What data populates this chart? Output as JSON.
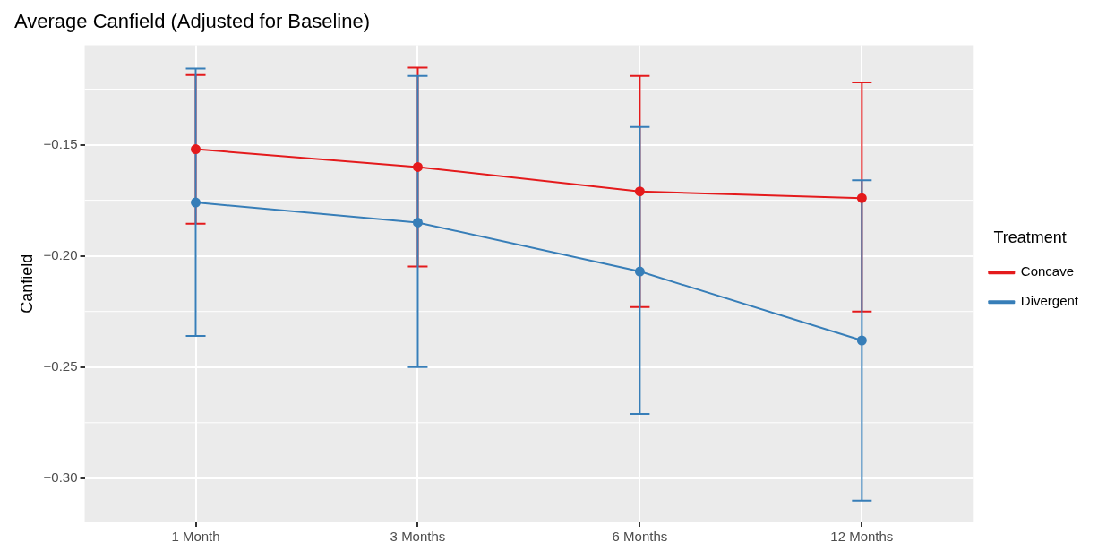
{
  "chart_data": {
    "type": "line",
    "title": "Average Canfield (Adjusted for Baseline)",
    "ylabel": "Canfield",
    "legend_title": "Treatment",
    "categories": [
      "1 Month",
      "3 Months",
      "6 Months",
      "12 Months"
    ],
    "series": [
      {
        "name": "Concave",
        "color": "#e41a1c",
        "values": [
          -0.152,
          -0.16,
          -0.171,
          -0.174
        ],
        "errors": [
          [
            -0.1855,
            -0.1186
          ],
          [
            -0.2048,
            -0.1153
          ],
          [
            -0.223,
            -0.119
          ],
          [
            -0.225,
            -0.122
          ]
        ]
      },
      {
        "name": "Divergent",
        "color": "#377eb8",
        "values": [
          -0.176,
          -0.185,
          -0.207,
          -0.238
        ],
        "errors": [
          [
            -0.236,
            -0.1157
          ],
          [
            -0.25,
            -0.119
          ],
          [
            -0.271,
            -0.142
          ],
          [
            -0.31,
            -0.166
          ]
        ]
      }
    ],
    "ylim": [
      -0.3198,
      -0.1052
    ],
    "yticks": [
      {
        "value": -0.3,
        "label": "−0.30"
      },
      {
        "value": -0.25,
        "label": "−0.25"
      },
      {
        "value": -0.2,
        "label": "−0.20"
      },
      {
        "value": -0.15,
        "label": "−0.15"
      }
    ],
    "grid": true,
    "legend": "right",
    "marker": "circle",
    "line_style": "solid"
  }
}
